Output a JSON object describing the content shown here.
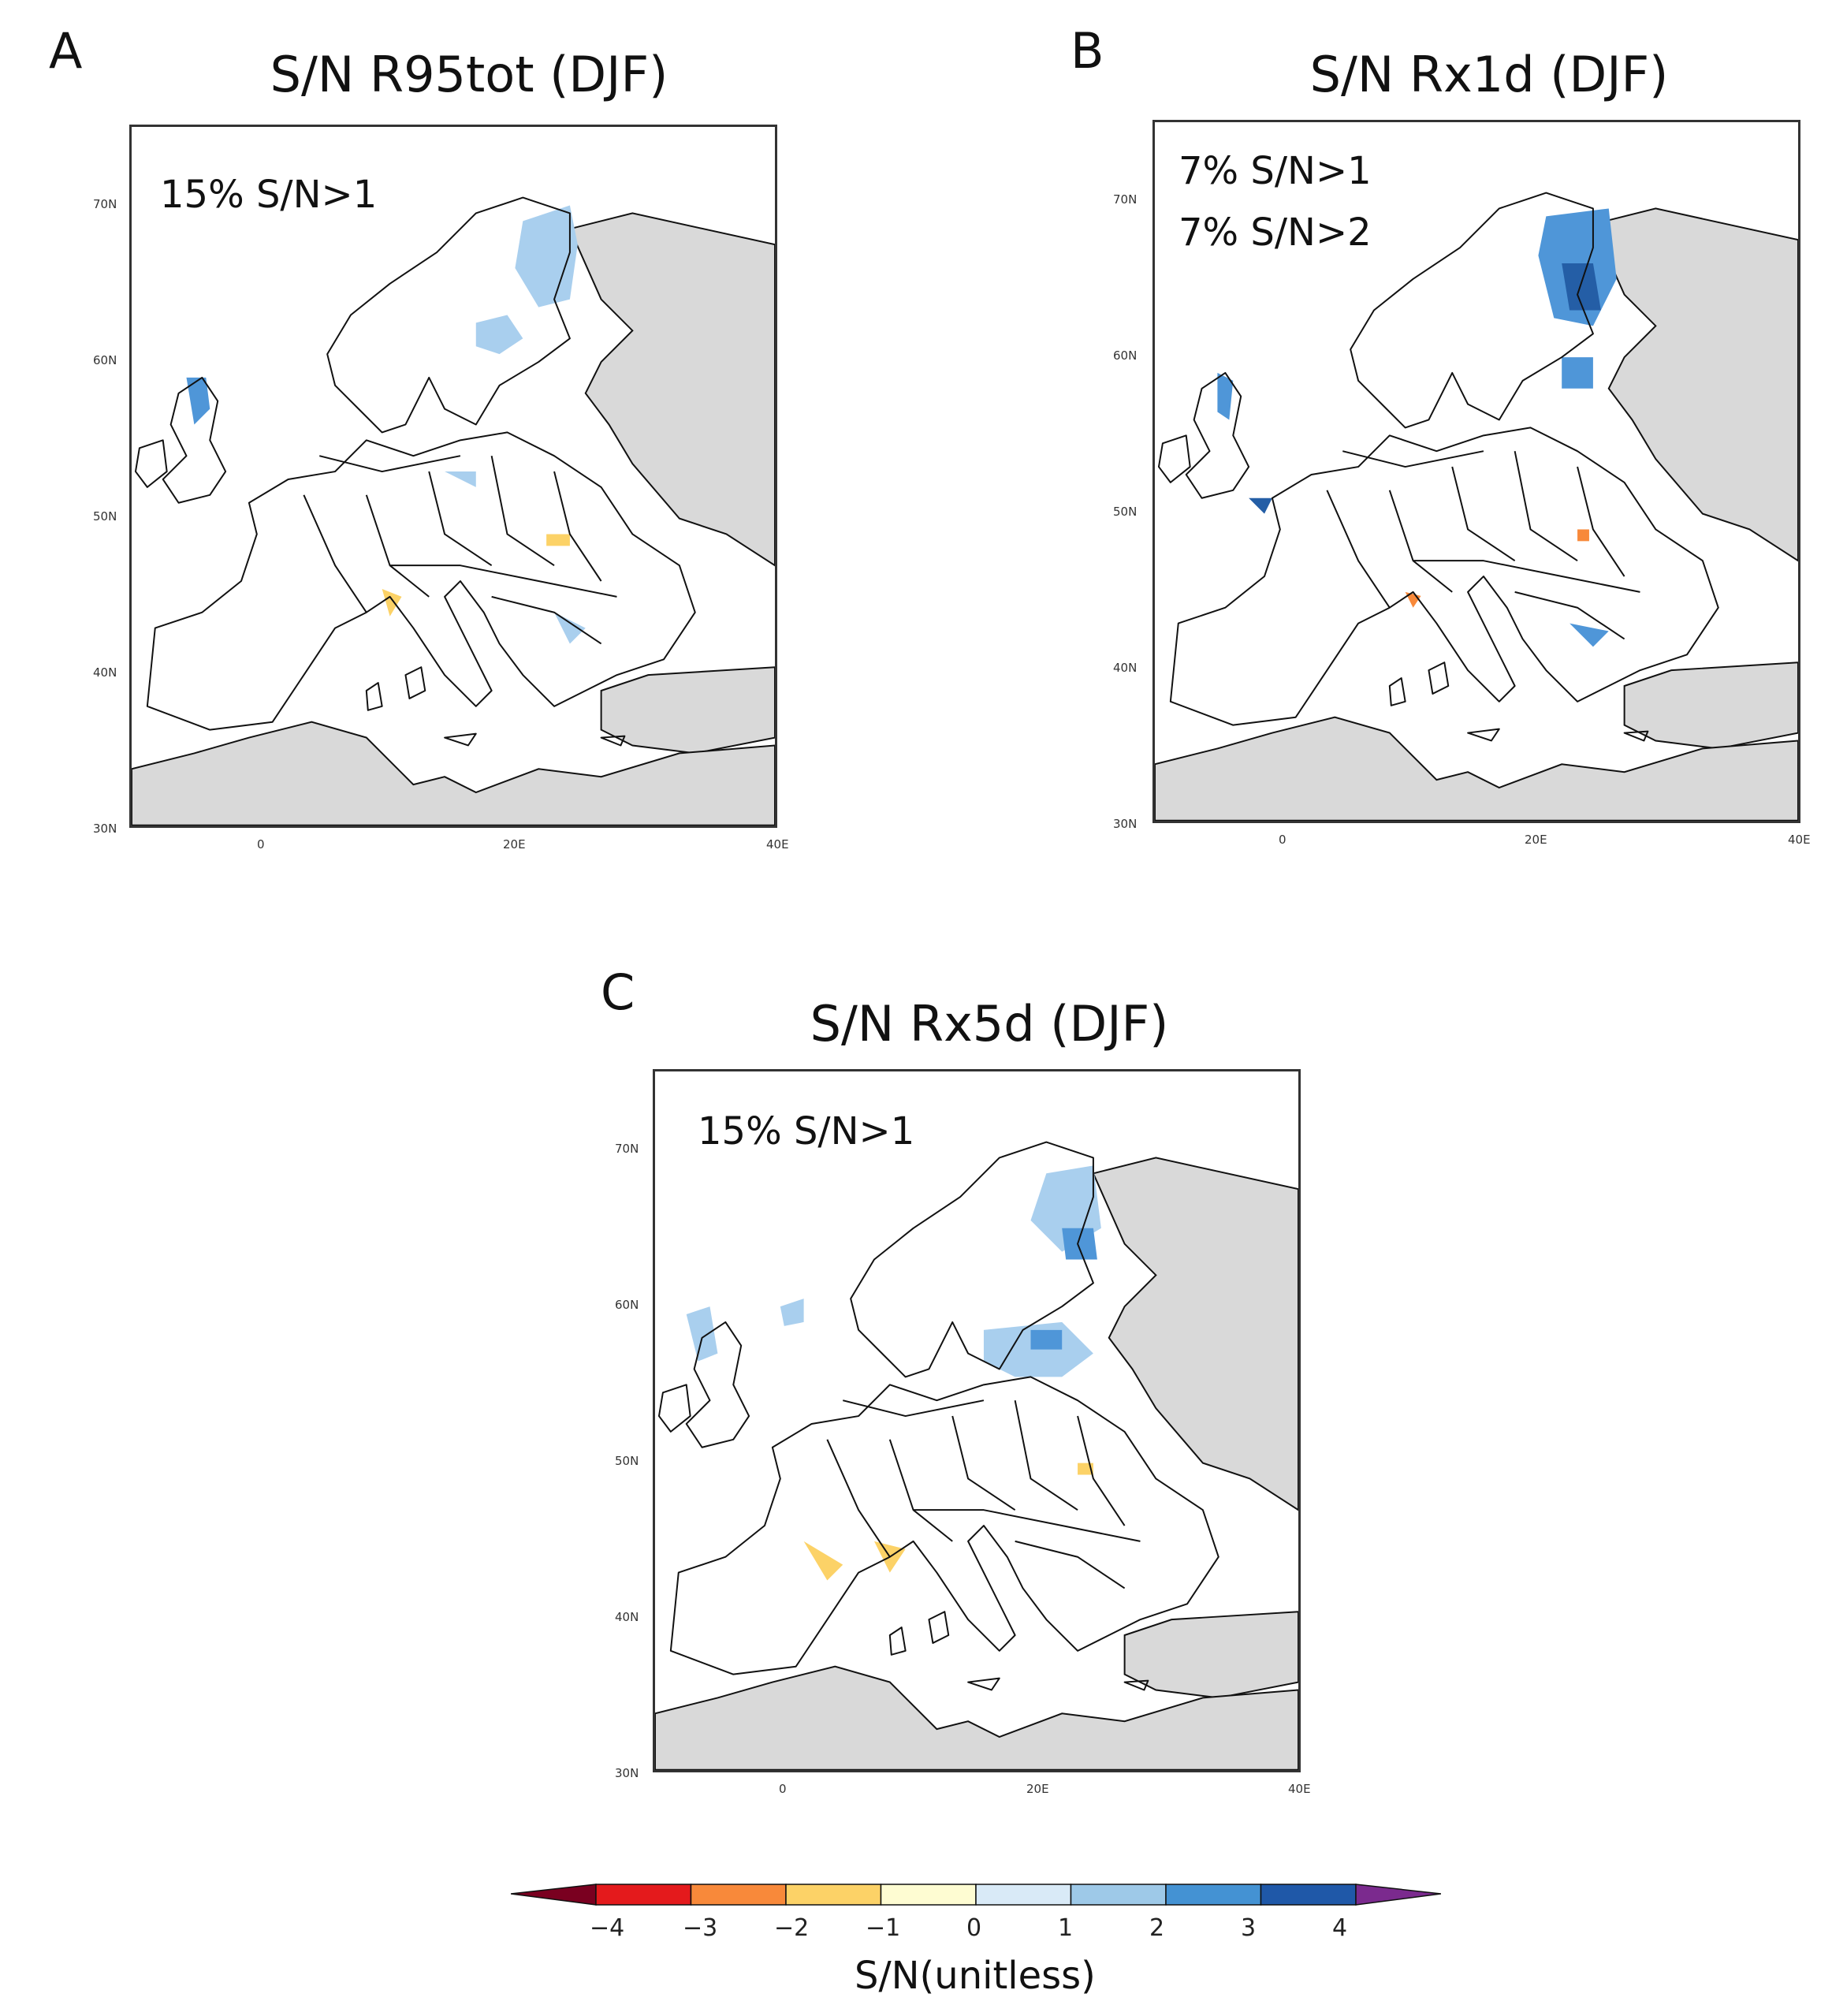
{
  "panels": [
    {
      "letter": "A",
      "title": "S/N R95tot (DJF)",
      "stats": [
        "15% S/N>1"
      ],
      "lat_ticks": [
        "70N",
        "60N",
        "50N",
        "40N",
        "30N"
      ],
      "lon_ticks": [
        "0",
        "20E",
        "40E"
      ]
    },
    {
      "letter": "B",
      "title": "S/N Rx1d (DJF)",
      "stats": [
        "7% S/N>1",
        "7% S/N>2"
      ],
      "lat_ticks": [
        "70N",
        "60N",
        "50N",
        "40N",
        "30N"
      ],
      "lon_ticks": [
        "0",
        "20E",
        "40E"
      ]
    },
    {
      "letter": "C",
      "title": "S/N Rx5d (DJF)",
      "stats": [
        "15% S/N>1"
      ],
      "lat_ticks": [
        "70N",
        "60N",
        "50N",
        "40N",
        "30N"
      ],
      "lon_ticks": [
        "0",
        "20E",
        "40E"
      ]
    }
  ],
  "colorbar": {
    "title": "S/N(unitless)",
    "labels": [
      "−4",
      "−3",
      "−2",
      "−1",
      "0",
      "1",
      "2",
      "3",
      "4"
    ],
    "colors": [
      "#7a0020",
      "#e41a1c",
      "#f8893a",
      "#fcd267",
      "#fefcd2",
      "#d9eaf7",
      "#9ec9e8",
      "#4492d3",
      "#1f58a8",
      "#7b2a8e"
    ]
  },
  "colors": {
    "land": "#ffffff",
    "masked": "#d9d9d9",
    "coast": "#111111",
    "pos1": "#a9cfee",
    "pos2": "#4f96d8",
    "pos3": "#245ea6",
    "neg1": "#fcd267",
    "neg2": "#f8893a"
  }
}
